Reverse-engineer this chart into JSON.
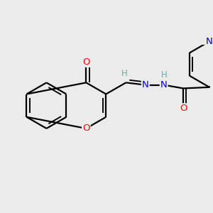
{
  "bg_color": "#ebebeb",
  "bond_color": "#000000",
  "bond_lw": 1.6,
  "atom_colors": {
    "O": "#ff0000",
    "N": "#0000cc",
    "H": "#6fa8a8",
    "C": "#000000"
  },
  "bl": 0.36,
  "xlim": [
    -1.65,
    1.65
  ],
  "ylim": [
    -0.95,
    1.0
  ]
}
